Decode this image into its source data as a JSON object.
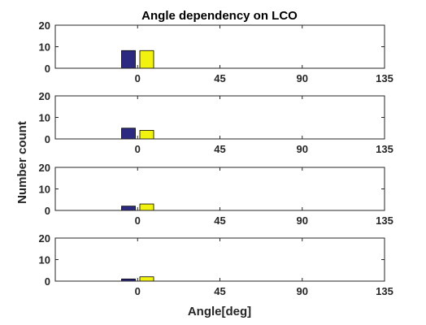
{
  "colors": {
    "series1": "#2b2a80",
    "series2": "#f2f20f",
    "axis": "#262626",
    "background": "#ffffff"
  },
  "chart_data": {
    "type": "bar",
    "title": "Angle dependency on LCO",
    "xlabel": "Angle[deg]",
    "ylabel": "Number count",
    "grid": false,
    "xlim": [
      -45,
      135
    ],
    "ylim": [
      0,
      20
    ],
    "x_ticks": [
      "0",
      "45",
      "90",
      "135"
    ],
    "y_ticks": [
      "0",
      "10",
      "20"
    ],
    "bar_centers": [
      -5,
      5
    ],
    "panels": [
      {
        "series": [
          {
            "values": [
              8.2
            ]
          },
          {
            "values": [
              8.2
            ]
          }
        ]
      },
      {
        "series": [
          {
            "values": [
              5
            ]
          },
          {
            "values": [
              4
            ]
          }
        ]
      },
      {
        "series": [
          {
            "values": [
              2
            ]
          },
          {
            "values": [
              3
            ]
          }
        ]
      },
      {
        "series": [
          {
            "values": [
              1
            ]
          },
          {
            "values": [
              2
            ]
          }
        ]
      }
    ]
  }
}
